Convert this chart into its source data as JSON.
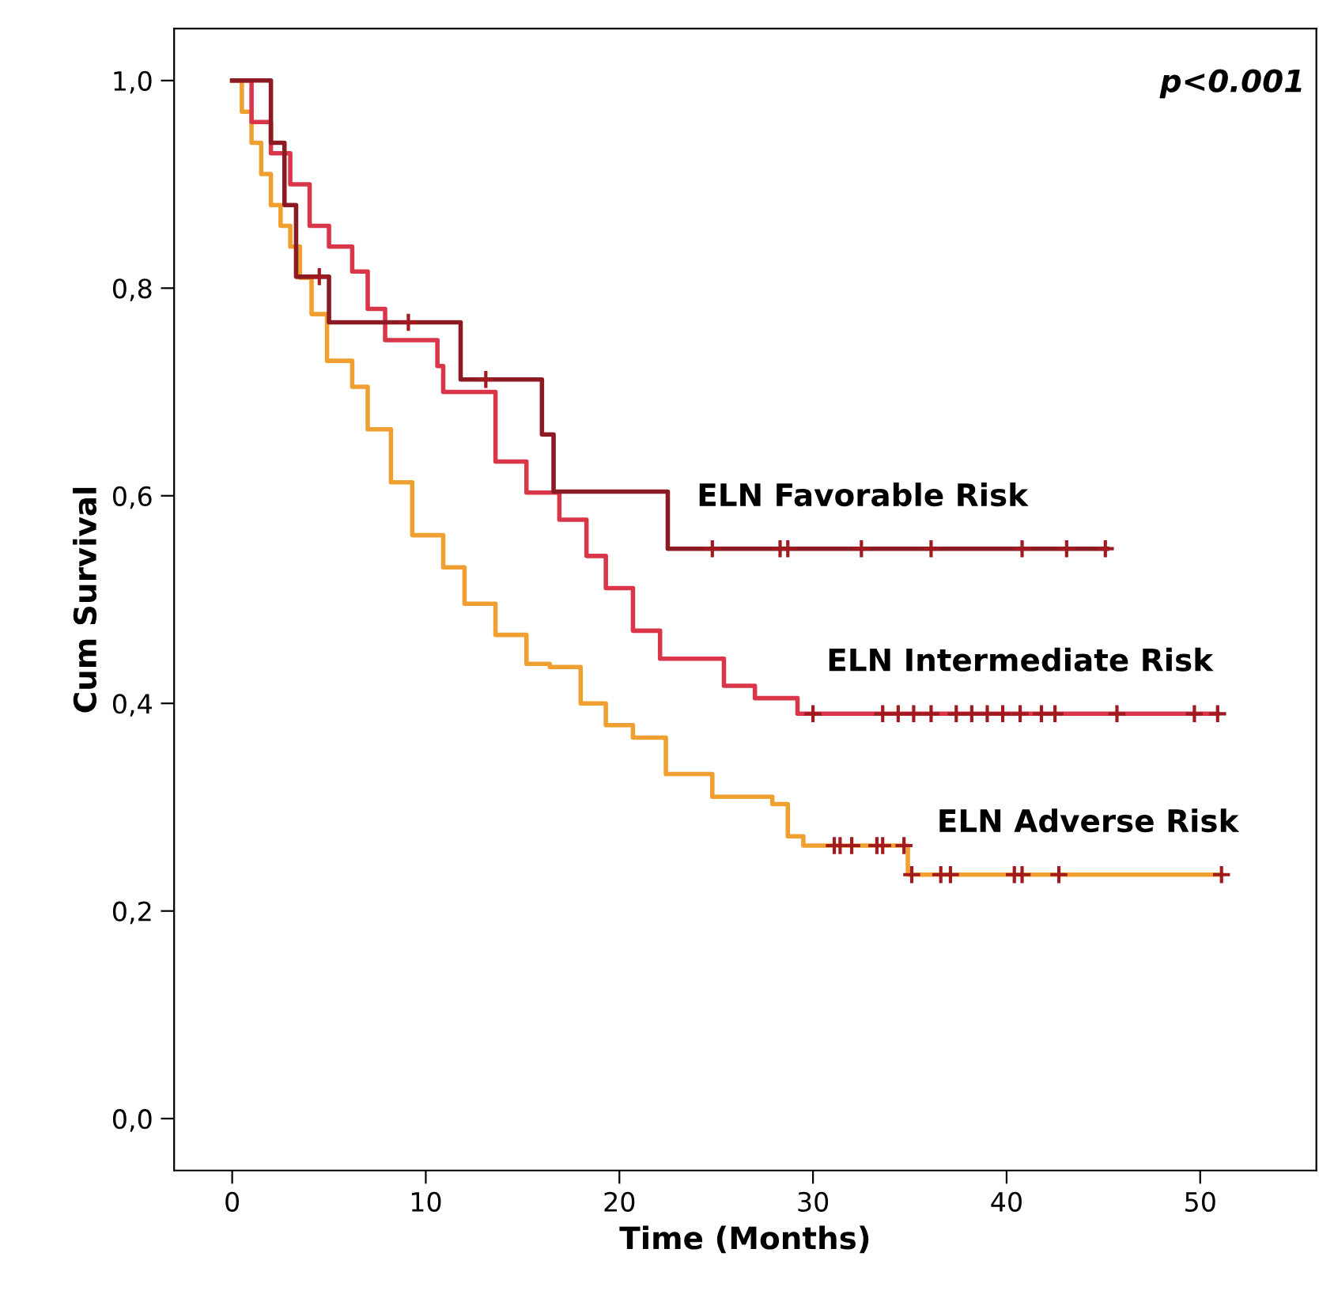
{
  "chart_data": {
    "type": "step",
    "xlabel": "Time (Months)",
    "ylabel": "Cum Survival",
    "xlim": [
      -3,
      56
    ],
    "ylim": [
      -0.05,
      1.05
    ],
    "xticks": [
      0,
      10,
      20,
      30,
      40,
      50
    ],
    "yticks": [
      {
        "value": 0,
        "label": "0,0"
      },
      {
        "value": 0.2,
        "label": "0,2"
      },
      {
        "value": 0.4,
        "label": "0,4"
      },
      {
        "value": 0.6,
        "label": "0,6"
      },
      {
        "value": 0.8,
        "label": "0,8"
      },
      {
        "value": 1.0,
        "label": "1,0"
      }
    ],
    "grid": false,
    "legend": false,
    "series": [
      {
        "name": "ELN Adverse Risk",
        "color": "#f0a030",
        "x": [
          0,
          0.5,
          1,
          1.5,
          2,
          2.5,
          3,
          3.5,
          4.1,
          4.9,
          6.2,
          7.0,
          8.2,
          9.3,
          10.9,
          12.0,
          13.6,
          15.2,
          16.4,
          18.0,
          19.3,
          20.7,
          22.4,
          23.8,
          24.8,
          27.9,
          28.7,
          29.5,
          34.9,
          51.1
        ],
        "values": [
          1.0,
          0.97,
          0.94,
          0.91,
          0.88,
          0.86,
          0.84,
          0.81,
          0.775,
          0.73,
          0.705,
          0.664,
          0.613,
          0.562,
          0.531,
          0.496,
          0.466,
          0.438,
          0.435,
          0.4,
          0.379,
          0.367,
          0.332,
          0.332,
          0.31,
          0.303,
          0.272,
          0.263,
          0.235,
          0.235
        ]
      },
      {
        "name": "ELN Intermediate Risk",
        "color": "#d9364a",
        "x": [
          0,
          1,
          2,
          3,
          4,
          5,
          6.2,
          7.0,
          7.9,
          10.6,
          10.9,
          13.6,
          15.2,
          16.9,
          18.3,
          19.3,
          20.7,
          22.1,
          24.3,
          25.4,
          27.0,
          29.2,
          50.9
        ],
        "values": [
          1.0,
          0.96,
          0.93,
          0.9,
          0.86,
          0.84,
          0.816,
          0.78,
          0.75,
          0.725,
          0.7,
          0.633,
          0.603,
          0.577,
          0.542,
          0.511,
          0.47,
          0.443,
          0.443,
          0.417,
          0.405,
          0.39,
          0.39
        ]
      },
      {
        "name": "ELN Favorable Risk",
        "color": "#8b1a22",
        "x": [
          0,
          2.0,
          2.7,
          3.3,
          5.0,
          11.8,
          16.0,
          16.6,
          22.5,
          45.2
        ],
        "values": [
          1.0,
          0.94,
          0.88,
          0.811,
          0.767,
          0.712,
          0.659,
          0.604,
          0.549,
          0.549
        ]
      },
      {
        "type": "scatter",
        "marker": "cross",
        "color": "#a01a20",
        "x": [
          31.1,
          31.4,
          32.0,
          33.3,
          33.6,
          34.7,
          35.1,
          36.6,
          37.1,
          40.4,
          40.8,
          42.7,
          51.1
        ],
        "values": [
          0.263,
          0.263,
          0.263,
          0.263,
          0.263,
          0.263,
          0.235,
          0.235,
          0.235,
          0.235,
          0.235,
          0.235,
          0.235
        ]
      },
      {
        "type": "scatter",
        "marker": "cross",
        "color": "#a01a20",
        "x": [
          30.0,
          33.6,
          34.4,
          35.2,
          36.1,
          37.4,
          38.2,
          39.0,
          39.8,
          40.7,
          41.8,
          42.5,
          45.7,
          49.7,
          50.9
        ],
        "values": [
          0.39,
          0.39,
          0.39,
          0.39,
          0.39,
          0.39,
          0.39,
          0.39,
          0.39,
          0.39,
          0.39,
          0.39,
          0.39,
          0.39,
          0.39
        ]
      },
      {
        "type": "scatter",
        "marker": "cross",
        "color": "#a01a20",
        "x": [
          4.5,
          9.1,
          13.1,
          24.8,
          28.3,
          28.7,
          32.5,
          36.1,
          40.8,
          43.1,
          45.1
        ],
        "values": [
          0.811,
          0.767,
          0.712,
          0.549,
          0.549,
          0.549,
          0.549,
          0.549,
          0.549,
          0.549,
          0.549
        ]
      }
    ],
    "annotations": [
      "p<0.001"
    ]
  }
}
